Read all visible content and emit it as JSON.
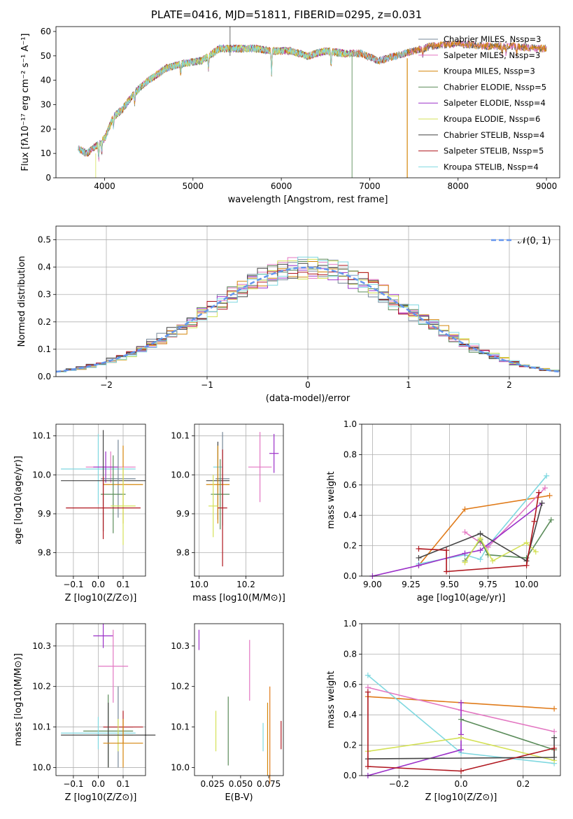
{
  "figure_title": "PLATE=0416, MJD=51811, FIBERID=0295, z=0.031",
  "colors": {
    "series": [
      "#778899",
      "#e377c2",
      "#d4860b",
      "#5b8c5a",
      "#9b30c8",
      "#d4e157",
      "#444444",
      "#b0171f",
      "#7fd8e0"
    ],
    "mean_fits": [
      "#6c8fd6",
      "#e07b1a"
    ],
    "normal_curve": "#6495ed",
    "grid": "#b0b0b0"
  },
  "chart_data": [
    {
      "type": "line",
      "id": "spectrum",
      "xlabel": "wavelength [Angstrom, rest frame]",
      "ylabel": "Flux [fλ10⁻¹⁷ erg cm⁻² s⁻¹ A⁻¹]",
      "xlim": [
        3450,
        9150
      ],
      "ylim": [
        0,
        62
      ],
      "xticks": [
        4000,
        5000,
        6000,
        7000,
        8000,
        9000
      ],
      "yticks": [
        0,
        10,
        20,
        30,
        40,
        50,
        60
      ],
      "grid": false,
      "legend": "upper right",
      "continuum": {
        "x": [
          3700,
          3800,
          3900,
          4000,
          4100,
          4200,
          4300,
          4400,
          4500,
          4700,
          4900,
          5100,
          5300,
          5500,
          5700,
          5900,
          6100,
          6300,
          6500,
          6700,
          6900,
          7100,
          7300,
          7500,
          7700,
          8000,
          8300,
          8600,
          8900
        ],
        "y": [
          12,
          10,
          13,
          16,
          25,
          28,
          33,
          37,
          40,
          45,
          47,
          48,
          53,
          53,
          53,
          52,
          52,
          50,
          52,
          51,
          51,
          48,
          50,
          52,
          54,
          55,
          54,
          54,
          53
        ]
      },
      "series": [
        {
          "name": "Chabrier MILES, N_SSP=3",
          "x_range": [
            3700,
            9000
          ]
        },
        {
          "name": "Salpeter MILES, N_SSP=3",
          "x_range": [
            3700,
            9000
          ]
        },
        {
          "name": "Kroupa MILES, N_SSP=3",
          "x_range": [
            3700,
            9000
          ]
        },
        {
          "name": "Chabrier ELODIE, N_SSP=5",
          "x_range": [
            3900,
            6800
          ]
        },
        {
          "name": "Salpeter ELODIE, N_SSP=4",
          "x_range": [
            3900,
            6800
          ]
        },
        {
          "name": "Kroupa ELODIE, N_SSP=6",
          "x_range": [
            3900,
            6800
          ]
        },
        {
          "name": "Chabrier STELIB, N_SSP=4",
          "x_range": [
            3700,
            9000
          ]
        },
        {
          "name": "Salpeter STELIB, N_SSP=5",
          "x_range": [
            3700,
            7420
          ]
        },
        {
          "name": "Kroupa STELIB, N_SSP=4",
          "x_range": [
            3700,
            7420
          ]
        }
      ]
    },
    {
      "type": "step",
      "id": "residuals",
      "xlabel": "(data-model)/error",
      "ylabel": "Normed distribution",
      "xlim": [
        -2.5,
        2.5
      ],
      "ylim": [
        0,
        0.55
      ],
      "xticks": [
        -2,
        -1,
        0,
        1,
        2
      ],
      "xtick_labels": [
        "−2",
        "−1",
        "0",
        "1",
        "2"
      ],
      "yticks": [
        0.0,
        0.1,
        0.2,
        0.3,
        0.4,
        0.5
      ],
      "grid": true,
      "legend": "upper right",
      "legend_label": "𝒩(0, 1)",
      "normal": {
        "mean": 0,
        "sigma": 1
      },
      "bin_width": 0.1,
      "bin_start": -2.5
    },
    {
      "type": "errorbar",
      "id": "age_vs_Z",
      "xlabel": "Z [log10(Z/Z⊙)]",
      "ylabel": "age [log10(age/yr)]",
      "xlim": [
        -0.17,
        0.19
      ],
      "ylim": [
        9.74,
        10.13
      ],
      "xticks": [
        -0.1,
        0.0,
        0.1
      ],
      "xtick_labels": [
        "−0.1",
        "0.0",
        "0.1"
      ],
      "yticks": [
        9.8,
        9.9,
        10.0,
        10.1
      ],
      "grid": true,
      "points": [
        {
          "x": 0.0,
          "y": 10.015,
          "xerr": 0.15,
          "yerr": 0.09,
          "c": 8
        },
        {
          "x": 0.05,
          "y": 10.02,
          "xerr": 0.1,
          "yerr": 0.04,
          "c": 1
        },
        {
          "x": 0.03,
          "y": 10.02,
          "xerr": 0.05,
          "yerr": 0.04,
          "c": 4
        },
        {
          "x": 0.02,
          "y": 9.985,
          "xerr": 0.17,
          "yerr": 0.13,
          "c": 6
        },
        {
          "x": 0.08,
          "y": 9.99,
          "xerr": 0.07,
          "yerr": 0.1,
          "c": 0
        },
        {
          "x": 0.1,
          "y": 9.975,
          "xerr": 0.08,
          "yerr": 0.1,
          "c": 2
        },
        {
          "x": 0.06,
          "y": 9.95,
          "xerr": 0.05,
          "yerr": 0.1,
          "c": 3
        },
        {
          "x": 0.1,
          "y": 9.92,
          "xerr": 0.05,
          "yerr": 0.1,
          "c": 5
        },
        {
          "x": 0.02,
          "y": 9.915,
          "xerr": 0.15,
          "yerr": 0.08,
          "c": 7
        }
      ]
    },
    {
      "type": "errorbar",
      "id": "age_vs_mass",
      "xlabel": "mass [log10(M/M⊙)]",
      "ylabel": "",
      "xlim": [
        9.98,
        10.36
      ],
      "ylim": [
        9.74,
        10.13
      ],
      "xticks": [
        10.0,
        10.2
      ],
      "xtick_labels": [
        "10.0",
        "10.2"
      ],
      "yticks": [
        9.8,
        9.9,
        10.0,
        10.1
      ],
      "grid": true,
      "points": [
        {
          "x": 10.08,
          "y": 10.02,
          "xerr": 0.02,
          "yerr": 0.06,
          "c": 8
        },
        {
          "x": 10.26,
          "y": 10.02,
          "xerr": 0.05,
          "yerr": 0.09,
          "c": 1
        },
        {
          "x": 10.32,
          "y": 10.055,
          "xerr": 0.02,
          "yerr": 0.05,
          "c": 4
        },
        {
          "x": 10.08,
          "y": 9.985,
          "xerr": 0.05,
          "yerr": 0.1,
          "c": 6
        },
        {
          "x": 10.1,
          "y": 9.99,
          "xerr": 0.03,
          "yerr": 0.12,
          "c": 0
        },
        {
          "x": 10.08,
          "y": 9.975,
          "xerr": 0.05,
          "yerr": 0.1,
          "c": 2
        },
        {
          "x": 10.09,
          "y": 9.95,
          "xerr": 0.04,
          "yerr": 0.09,
          "c": 3
        },
        {
          "x": 10.06,
          "y": 9.92,
          "xerr": 0.02,
          "yerr": 0.08,
          "c": 5
        },
        {
          "x": 10.1,
          "y": 9.915,
          "xerr": 0.02,
          "yerr": 0.15,
          "c": 7
        }
      ]
    },
    {
      "type": "line",
      "id": "weight_vs_age",
      "xlabel": "age [log10(age/yr)]",
      "ylabel": "mass weight",
      "xlim": [
        8.93,
        10.22
      ],
      "ylim": [
        0,
        1
      ],
      "xticks": [
        9.0,
        9.25,
        9.5,
        9.75,
        10.0
      ],
      "xtick_labels": [
        "9.00",
        "9.25",
        "9.50",
        "9.75",
        "10.00"
      ],
      "yticks": [
        0.0,
        0.2,
        0.4,
        0.6,
        0.8,
        1.0
      ],
      "grid": true,
      "series": [
        {
          "c": 10,
          "x": [
            9.3,
            9.6,
            10.15
          ],
          "y": [
            0.07,
            0.44,
            0.53
          ]
        },
        {
          "c": 11,
          "x": [
            9.3,
            9.6,
            10.15
          ],
          "y": [
            0.04,
            0.46,
            0.5
          ]
        },
        {
          "c": 8,
          "x": [
            9.3,
            9.6,
            9.7,
            9.75,
            10.13
          ],
          "y": [
            0.08,
            0.14,
            0.11,
            0.2,
            0.66
          ]
        },
        {
          "c": 1,
          "x": [
            9.6,
            9.7,
            9.75,
            10.12
          ],
          "y": [
            0.29,
            0.22,
            0.19,
            0.58
          ]
        },
        {
          "c": 4,
          "x": [
            9.0,
            9.3,
            9.6,
            9.7,
            10.1
          ],
          "y": [
            0.0,
            0.07,
            0.15,
            0.17,
            0.48
          ]
        },
        {
          "c": 3,
          "x": [
            9.6,
            9.7,
            9.75,
            10.0,
            10.16
          ],
          "y": [
            0.1,
            0.24,
            0.14,
            0.12,
            0.37
          ]
        },
        {
          "c": 5,
          "x": [
            9.6,
            9.7,
            9.78,
            10.0,
            10.06
          ],
          "y": [
            0.09,
            0.25,
            0.1,
            0.22,
            0.16
          ]
        },
        {
          "c": 6,
          "x": [
            9.3,
            9.7,
            10.0,
            10.1
          ],
          "y": [
            0.12,
            0.28,
            0.1,
            0.48
          ]
        },
        {
          "c": 7,
          "x": [
            9.3,
            9.48,
            9.48,
            10.0,
            10.05,
            10.08
          ],
          "y": [
            0.18,
            0.17,
            0.03,
            0.07,
            0.36,
            0.55
          ]
        }
      ]
    },
    {
      "type": "errorbar",
      "id": "mass_vs_Z",
      "xlabel": "Z [log10(Z/Z⊙)]",
      "ylabel": "mass [log10(M/M⊙)]",
      "xlim": [
        -0.17,
        0.19
      ],
      "ylim": [
        9.98,
        10.355
      ],
      "xticks": [
        -0.1,
        0.0,
        0.1
      ],
      "xtick_labels": [
        "−0.1",
        "0.0",
        "0.1"
      ],
      "yticks": [
        10.0,
        10.1,
        10.2,
        10.3
      ],
      "grid": true,
      "points": [
        {
          "x": 0.02,
          "y": 10.325,
          "xerr": 0.04,
          "yerr": 0.03,
          "c": 4
        },
        {
          "x": 0.06,
          "y": 10.25,
          "xerr": 0.06,
          "yerr": 0.09,
          "c": 1
        },
        {
          "x": 0.08,
          "y": 10.1,
          "xerr": 0.06,
          "yerr": 0.1,
          "c": 0
        },
        {
          "x": 0.1,
          "y": 10.1,
          "xerr": 0.08,
          "yerr": 0.04,
          "c": 7
        },
        {
          "x": 0.04,
          "y": 10.09,
          "xerr": 0.1,
          "yerr": 0.09,
          "c": 3
        },
        {
          "x": 0.0,
          "y": 10.085,
          "xerr": 0.15,
          "yerr": 0.04,
          "c": 8
        },
        {
          "x": 0.08,
          "y": 10.08,
          "xerr": 0.06,
          "yerr": 0.04,
          "c": 5
        },
        {
          "x": 0.04,
          "y": 10.08,
          "xerr": 0.19,
          "yerr": 0.08,
          "c": 6
        },
        {
          "x": 0.1,
          "y": 10.06,
          "xerr": 0.08,
          "yerr": 0.06,
          "c": 2
        }
      ]
    },
    {
      "type": "errorbar",
      "id": "mass_vs_ebv",
      "xlabel": "E(B-V)",
      "ylabel": "",
      "xlim": [
        0.009,
        0.088
      ],
      "ylim": [
        9.98,
        10.355
      ],
      "xticks": [
        0.025,
        0.05,
        0.075
      ],
      "xtick_labels": [
        "0.025",
        "0.050",
        "0.075"
      ],
      "yticks": [
        10.0,
        10.1,
        10.2,
        10.3
      ],
      "grid": false,
      "points": [
        {
          "x": 0.013,
          "y": 10.315,
          "xerr": 0,
          "yerr": 0.025,
          "c": 4
        },
        {
          "x": 0.058,
          "y": 10.24,
          "xerr": 0,
          "yerr": 0.075,
          "c": 1
        },
        {
          "x": 0.07,
          "y": 10.075,
          "xerr": 0,
          "yerr": 0.035,
          "c": 8
        },
        {
          "x": 0.074,
          "y": 10.07,
          "xerr": 0,
          "yerr": 0.09,
          "c": 2
        },
        {
          "x": 0.076,
          "y": 10.08,
          "xerr": 0,
          "yerr": 0.12,
          "c": 10
        },
        {
          "x": 0.039,
          "y": 10.09,
          "xerr": 0,
          "yerr": 0.085,
          "c": 3
        },
        {
          "x": 0.028,
          "y": 10.09,
          "xerr": 0,
          "yerr": 0.05,
          "c": 5
        },
        {
          "x": 0.086,
          "y": 10.08,
          "xerr": 0,
          "yerr": 0.035,
          "c": 7
        }
      ]
    },
    {
      "type": "line",
      "id": "weight_vs_Z",
      "xlabel": "Z [log10(Z/Z⊙)]",
      "ylabel": "mass weight",
      "xlim": [
        -0.32,
        0.32
      ],
      "ylim": [
        0,
        1
      ],
      "xticks": [
        -0.2,
        0.0,
        0.2
      ],
      "xtick_labels": [
        "−0.2",
        "0.0",
        "0.2"
      ],
      "yticks": [
        0.0,
        0.2,
        0.4,
        0.6,
        0.8,
        1.0
      ],
      "grid": true,
      "series": [
        {
          "c": 10,
          "x": [
            -0.3,
            0.0,
            0.3
          ],
          "y": [
            0.52,
            0.48,
            0.44
          ]
        },
        {
          "c": 11,
          "x": [
            -0.3,
            -0.3,
            0.0,
            0.3,
            0.3
          ],
          "y": [
            0.05,
            0.5,
            0.48,
            0.46,
            0.04
          ]
        },
        {
          "c": 8,
          "x": [
            -0.3,
            0.0,
            0.3
          ],
          "y": [
            0.66,
            0.15,
            0.08
          ]
        },
        {
          "c": 1,
          "x": [
            -0.3,
            0.0,
            0.3
          ],
          "y": [
            0.58,
            0.43,
            0.29
          ]
        },
        {
          "c": 4,
          "x": [
            -0.3,
            0.0,
            0.0,
            0.0
          ],
          "y": [
            0.0,
            0.17,
            0.27,
            0.48
          ]
        },
        {
          "c": 3,
          "x": [
            0.0,
            0.3
          ],
          "y": [
            0.37,
            0.17
          ]
        },
        {
          "c": 5,
          "x": [
            -0.3,
            0.0,
            0.3
          ],
          "y": [
            0.16,
            0.25,
            0.1
          ]
        },
        {
          "c": 6,
          "x": [
            -0.3,
            0.3,
            0.3
          ],
          "y": [
            0.11,
            0.12,
            0.25
          ]
        },
        {
          "c": 7,
          "x": [
            -0.3,
            -0.3,
            0.0,
            0.3
          ],
          "y": [
            0.55,
            0.06,
            0.03,
            0.18
          ]
        }
      ]
    }
  ]
}
